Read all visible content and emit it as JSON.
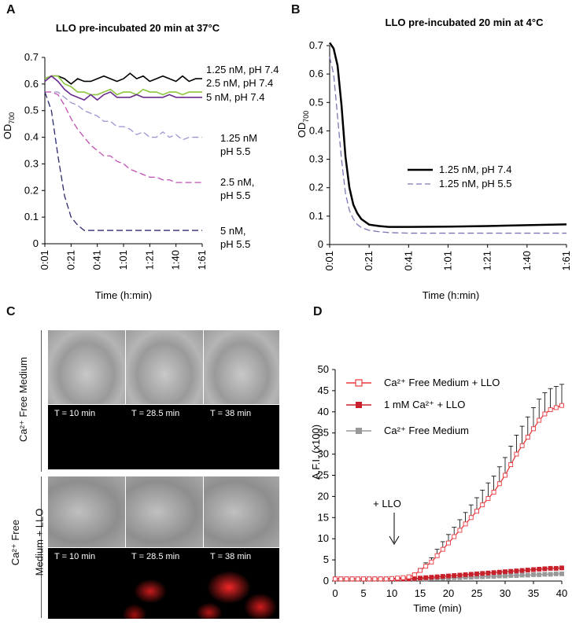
{
  "panels": {
    "A": {
      "letter": "A",
      "title": "LLO pre-incubated 20 min at 37°C",
      "ylabel": "OD",
      "ylabel_sub": "700",
      "xlabel": "Time (h:min)",
      "labels": {
        "s1": "1.25 nM, pH 7.4",
        "s2": "2.5 nM, pH 7.4",
        "s3": "5 nM, pH 7.4",
        "s4a": "1.25 nM",
        "s4b": "pH 5.5",
        "s5a": "2.5 nM,",
        "s5b": "pH 5.5",
        "s6a": "5 nM,",
        "s6b": "pH 5.5"
      }
    },
    "B": {
      "letter": "B",
      "title": "LLO  pre-incubated 20 min at 4°C",
      "ylabel": "OD",
      "ylabel_sub": "700",
      "xlabel": "Time (h:min)",
      "legend": [
        "1.25 nM, pH 7.4",
        "1.25 nM, pH 5.5"
      ]
    },
    "C": {
      "letter": "C",
      "row1_label": "Ca²⁺ Free Medium",
      "row2_label_a": "Ca²⁺ Free",
      "row2_label_b": "Medium  + LLO",
      "times": [
        "T = 10 min",
        "T = 28.5 min",
        "T = 38 min"
      ]
    },
    "D": {
      "letter": "D",
      "ylabel": "A.F.I. (x100)",
      "xlabel": "Time (min)",
      "annotation": "+ LLO",
      "legend": [
        "Ca²⁺ Free Medium + LLO",
        "1 mM Ca²⁺ + LLO",
        "Ca²⁺ Free Medium"
      ]
    }
  },
  "chart_data": [
    {
      "type": "line",
      "title": "LLO pre-incubated 20 min at 37°C",
      "xlabel": "Time (h:min)",
      "ylabel": "OD700",
      "xticks": [
        "0:01",
        "0:21",
        "0:41",
        "1:01",
        "1:21",
        "1:40",
        "1:61"
      ],
      "ylim": [
        0,
        0.7
      ],
      "yticks": [
        0,
        0.1,
        0.2,
        0.3,
        0.4,
        0.5,
        0.6,
        0.7
      ],
      "x": [
        0,
        5,
        10,
        15,
        20,
        25,
        30,
        35,
        40,
        45,
        50,
        55,
        60,
        65,
        70,
        75,
        80,
        85,
        90,
        95,
        100,
        105,
        110,
        115,
        120
      ],
      "series": [
        {
          "name": "1.25 nM, pH 7.4",
          "color": "#000000",
          "dash": false,
          "values": [
            0.62,
            0.63,
            0.63,
            0.62,
            0.6,
            0.62,
            0.61,
            0.61,
            0.62,
            0.63,
            0.62,
            0.61,
            0.62,
            0.64,
            0.62,
            0.63,
            0.61,
            0.62,
            0.63,
            0.62,
            0.61,
            0.63,
            0.61,
            0.62,
            0.62
          ]
        },
        {
          "name": "2.5 nM, pH 7.4",
          "color": "#8dc63f",
          "dash": false,
          "values": [
            0.62,
            0.63,
            0.63,
            0.6,
            0.59,
            0.57,
            0.57,
            0.56,
            0.56,
            0.57,
            0.58,
            0.56,
            0.57,
            0.57,
            0.56,
            0.58,
            0.57,
            0.57,
            0.56,
            0.57,
            0.57,
            0.56,
            0.57,
            0.57,
            0.57
          ]
        },
        {
          "name": "5 nM, pH 7.4",
          "color": "#6b2c8f",
          "dash": false,
          "values": [
            0.61,
            0.63,
            0.61,
            0.58,
            0.56,
            0.55,
            0.54,
            0.56,
            0.54,
            0.56,
            0.57,
            0.55,
            0.55,
            0.55,
            0.56,
            0.55,
            0.55,
            0.55,
            0.55,
            0.56,
            0.55,
            0.55,
            0.55,
            0.55,
            0.55
          ]
        },
        {
          "name": "1.25 nM pH 5.5",
          "color": "#9a95cf",
          "dash": true,
          "values": [
            0.57,
            0.57,
            0.57,
            0.55,
            0.53,
            0.52,
            0.5,
            0.49,
            0.48,
            0.46,
            0.46,
            0.44,
            0.44,
            0.43,
            0.41,
            0.42,
            0.4,
            0.4,
            0.42,
            0.4,
            0.41,
            0.39,
            0.4,
            0.4,
            0.4
          ]
        },
        {
          "name": "2.5 nM, pH 5.5",
          "color": "#c051b4",
          "dash": true,
          "values": [
            0.57,
            0.57,
            0.56,
            0.52,
            0.47,
            0.43,
            0.4,
            0.37,
            0.35,
            0.33,
            0.33,
            0.31,
            0.3,
            0.28,
            0.27,
            0.26,
            0.25,
            0.25,
            0.24,
            0.24,
            0.23,
            0.23,
            0.23,
            0.23,
            0.23
          ]
        },
        {
          "name": "5 nM, pH 5.5",
          "color": "#2a2a6e",
          "dash": true,
          "values": [
            0.57,
            0.5,
            0.33,
            0.18,
            0.1,
            0.07,
            0.05,
            0.05,
            0.05,
            0.05,
            0.05,
            0.05,
            0.05,
            0.05,
            0.05,
            0.05,
            0.05,
            0.05,
            0.05,
            0.05,
            0.05,
            0.05,
            0.05,
            0.05,
            0.05
          ]
        }
      ]
    },
    {
      "type": "line",
      "title": "LLO  pre-incubated 20 min at 4°C",
      "xlabel": "Time (h:min)",
      "ylabel": "OD700",
      "xticks": [
        "0:01",
        "0:21",
        "0:41",
        "1:01",
        "1:21",
        "1:40",
        "1:61"
      ],
      "ylim": [
        0,
        0.7
      ],
      "yticks": [
        0,
        0.1,
        0.2,
        0.3,
        0.4,
        0.5,
        0.6,
        0.7
      ],
      "x": [
        0,
        2,
        4,
        6,
        8,
        10,
        12,
        14,
        16,
        18,
        20,
        25,
        30,
        40,
        60,
        80,
        100,
        120
      ],
      "series": [
        {
          "name": "1.25 nM, pH 7.4",
          "color": "#000000",
          "dash": false,
          "values": [
            0.71,
            0.69,
            0.63,
            0.49,
            0.31,
            0.2,
            0.14,
            0.11,
            0.09,
            0.08,
            0.07,
            0.065,
            0.062,
            0.062,
            0.063,
            0.065,
            0.068,
            0.071
          ]
        },
        {
          "name": "1.25 nM, pH 5.5",
          "color": "#7a78b4",
          "dash": true,
          "values": [
            0.66,
            0.6,
            0.45,
            0.3,
            0.18,
            0.12,
            0.09,
            0.07,
            0.06,
            0.055,
            0.05,
            0.045,
            0.042,
            0.04,
            0.04,
            0.04,
            0.04,
            0.04
          ]
        }
      ]
    },
    {
      "type": "line",
      "xlabel": "Time (min)",
      "ylabel": "A.F.I. (x100)",
      "xlim": [
        0,
        40
      ],
      "ylim": [
        0,
        50
      ],
      "xticks": [
        0,
        5,
        10,
        15,
        20,
        25,
        30,
        35,
        40
      ],
      "yticks": [
        0,
        5,
        10,
        15,
        20,
        25,
        30,
        35,
        40,
        45,
        50
      ],
      "annotation": {
        "text": "+ LLO",
        "x": 10
      },
      "x": [
        0,
        1,
        2,
        3,
        4,
        5,
        6,
        7,
        8,
        9,
        10,
        11,
        12,
        13,
        14,
        15,
        16,
        17,
        18,
        19,
        20,
        21,
        22,
        23,
        24,
        25,
        26,
        27,
        28,
        29,
        30,
        31,
        32,
        33,
        34,
        35,
        36,
        37,
        38,
        39,
        40
      ],
      "series": [
        {
          "name": "Ca²⁺ Free Medium + LLO",
          "color": "#e8383d",
          "marker": "open-square",
          "values": [
            0.5,
            0.5,
            0.5,
            0.5,
            0.5,
            0.5,
            0.5,
            0.5,
            0.5,
            0.5,
            0.6,
            0.7,
            0.8,
            1.0,
            1.5,
            2.5,
            3.5,
            4.5,
            6,
            7.5,
            9,
            10.5,
            12,
            13.5,
            15,
            16.5,
            18,
            19.5,
            21,
            23,
            25,
            27.5,
            30,
            32,
            34,
            36,
            38,
            39.5,
            40.5,
            41,
            41.5
          ],
          "error": [
            0,
            0,
            0,
            0,
            0,
            0,
            0,
            0,
            0,
            0,
            0,
            0,
            0,
            0,
            0.3,
            0.5,
            0.8,
            1,
            1.5,
            1.8,
            2,
            2.2,
            2.5,
            2.7,
            3,
            3.2,
            3.5,
            3.7,
            3.8,
            4,
            4.2,
            4.4,
            4.5,
            4.6,
            4.8,
            5,
            5,
            5,
            5,
            5,
            5
          ]
        },
        {
          "name": "1 mM Ca²⁺ + LLO",
          "color": "#c8202a",
          "marker": "filled-square",
          "values": [
            0.5,
            0.5,
            0.5,
            0.5,
            0.5,
            0.5,
            0.5,
            0.5,
            0.5,
            0.5,
            0.5,
            0.5,
            0.5,
            0.5,
            0.6,
            0.7,
            0.8,
            0.9,
            1.0,
            1.1,
            1.2,
            1.3,
            1.4,
            1.5,
            1.6,
            1.7,
            1.8,
            1.9,
            2.0,
            2.1,
            2.2,
            2.3,
            2.4,
            2.5,
            2.6,
            2.7,
            2.8,
            2.9,
            3.0,
            3.0,
            3.1
          ]
        },
        {
          "name": "Ca²⁺ Free Medium",
          "color": "#999999",
          "marker": "filled-square",
          "values": [
            0.5,
            0.5,
            0.5,
            0.5,
            0.5,
            0.5,
            0.5,
            0.5,
            0.5,
            0.5,
            0.5,
            0.5,
            0.5,
            0.5,
            0.5,
            0.5,
            0.5,
            0.6,
            0.6,
            0.7,
            0.7,
            0.8,
            0.8,
            0.9,
            0.9,
            1.0,
            1.0,
            1.1,
            1.1,
            1.2,
            1.2,
            1.3,
            1.3,
            1.4,
            1.4,
            1.5,
            1.5,
            1.6,
            1.6,
            1.7,
            1.7
          ]
        }
      ]
    }
  ]
}
